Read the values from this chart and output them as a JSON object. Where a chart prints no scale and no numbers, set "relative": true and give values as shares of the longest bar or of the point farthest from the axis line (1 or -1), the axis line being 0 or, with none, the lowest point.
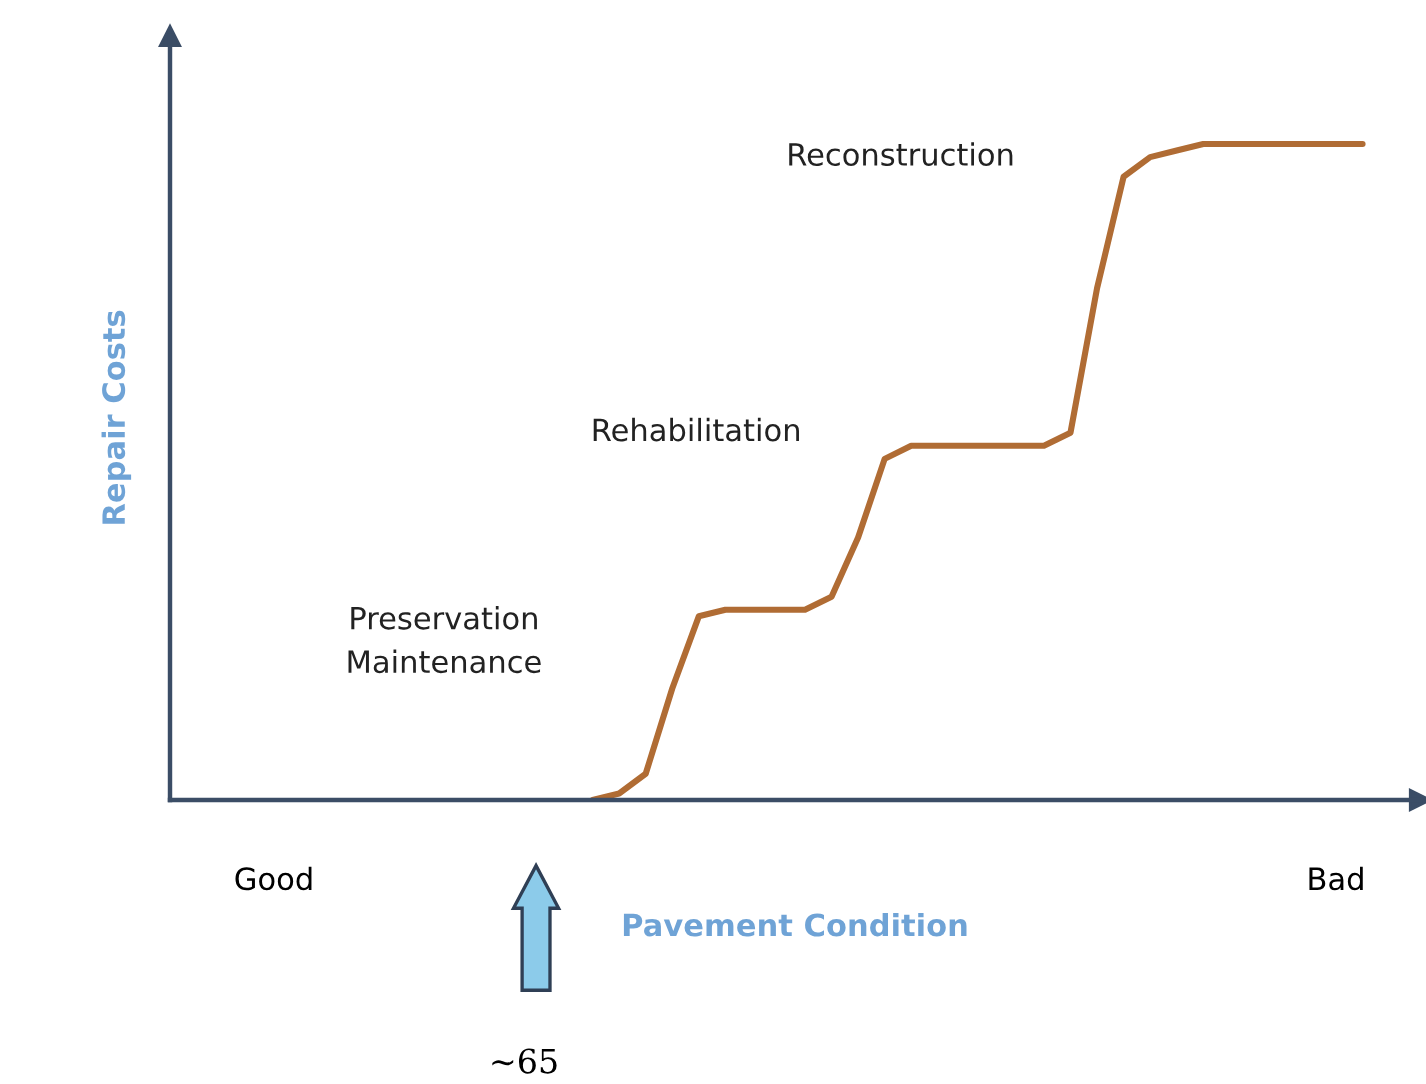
{
  "chart_data": {
    "type": "line",
    "relative": true,
    "xlabel": "Pavement Condition",
    "ylabel": "Repair Costs",
    "categories": [
      "Good",
      null,
      null,
      null,
      null,
      null,
      null,
      null,
      null,
      null,
      null,
      null,
      null,
      null,
      null,
      null,
      null,
      null,
      null,
      null,
      null,
      null,
      null,
      null,
      null,
      null,
      null,
      null,
      null,
      null,
      null,
      null,
      null,
      null,
      null,
      null,
      null,
      null,
      null,
      null,
      "Bad",
      null
    ],
    "values": [
      null,
      null,
      null,
      null,
      null,
      null,
      null,
      null,
      null,
      null,
      null,
      null,
      0,
      0.01,
      0.04,
      0.17,
      0.28,
      0.29,
      0.29,
      0.29,
      0.29,
      0.31,
      0.4,
      0.52,
      0.54,
      0.54,
      0.54,
      0.54,
      0.54,
      0.54,
      0.56,
      0.78,
      0.95,
      0.98,
      0.99,
      1.0,
      1.0,
      1.0,
      1.0,
      1.0,
      1.0,
      1.0
    ],
    "color": "#b06c34",
    "annotations": [
      "Reconstruction",
      "Rehabilitation",
      "Preservation\nMaintenance",
      "~65"
    ]
  }
}
